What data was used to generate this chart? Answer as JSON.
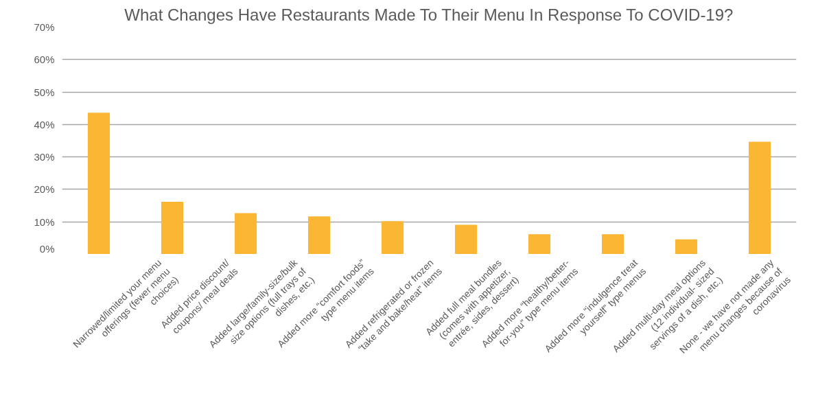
{
  "chart_data": {
    "type": "bar",
    "title": "What Changes Have Restaurants Made To Their Menu In Response To COVID-19?",
    "categories": [
      "Narrowed/limited your menu offerings (fewer menu choices)",
      "Added price discount/ coupons/ meal deals",
      "Added large/family-size/bulk size options (full trays of dishes, etc.)",
      "Added more “comfort foods” type menu items",
      "Added refrigerated or frozen “take and bake/heat” items",
      "Added full meal bundles (comes with appetizer, entrée, sides, dessert)",
      "Added more “healthy/better-for-you” type menu items",
      "Added more “indulgence treat yourself” type menus",
      "Added multi-day meal options (12 individual- sized servings of a dish, etc.)",
      "None - we have not made any menu changes because of coronavirus"
    ],
    "values": [
      43.6,
      16.2,
      12.7,
      11.7,
      10.2,
      9.1,
      6.2,
      6.2,
      4.6,
      34.7
    ],
    "color": "#fbb634",
    "ylim": [
      0,
      70
    ],
    "yticks": [
      {
        "value": 0,
        "label": "0%"
      },
      {
        "value": 10,
        "label": "10%"
      },
      {
        "value": 20,
        "label": "20%"
      },
      {
        "value": 30,
        "label": "30%"
      },
      {
        "value": 40,
        "label": "40%"
      },
      {
        "value": 50,
        "label": "50%"
      },
      {
        "value": 60,
        "label": "60%"
      },
      {
        "value": 70,
        "label": "70%"
      }
    ],
    "grid": "y"
  }
}
